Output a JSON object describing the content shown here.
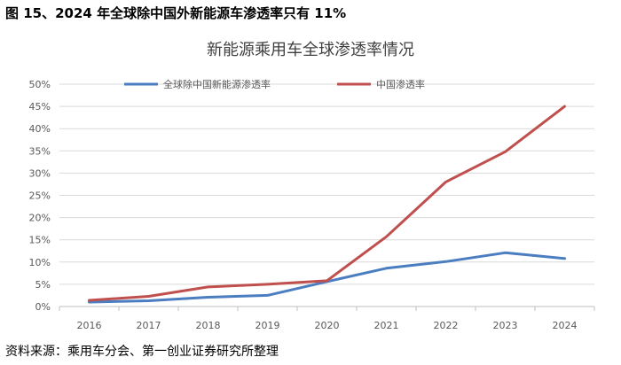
{
  "figure": {
    "title": "图 15、2024 年全球除中国外新能源车渗透率只有 11%",
    "source": "资料来源：乘用车分会、第一创业证券研究所整理"
  },
  "chart_data": {
    "type": "line",
    "title": "新能源乘用车全球渗透率情况",
    "x": [
      "2016",
      "2017",
      "2018",
      "2019",
      "2020",
      "2021",
      "2022",
      "2023",
      "2024"
    ],
    "ylim": [
      0,
      50
    ],
    "yticks": [
      0,
      5,
      10,
      15,
      20,
      25,
      30,
      35,
      40,
      45,
      50
    ],
    "ytick_labels": [
      "0%",
      "5%",
      "10%",
      "15%",
      "20%",
      "25%",
      "30%",
      "35%",
      "40%",
      "45%",
      "50%"
    ],
    "grid": true,
    "legend_position": "top",
    "series": [
      {
        "name": "全球除中国新能源渗透率",
        "color": "#4A7EC1",
        "values": [
          1.0,
          1.3,
          2.1,
          2.5,
          5.6,
          8.6,
          10.1,
          12.1,
          10.8
        ]
      },
      {
        "name": "中国渗透率",
        "color": "#C0504D",
        "values": [
          1.4,
          2.3,
          4.4,
          5.0,
          5.8,
          15.7,
          28.0,
          34.8,
          45.0
        ]
      }
    ]
  }
}
